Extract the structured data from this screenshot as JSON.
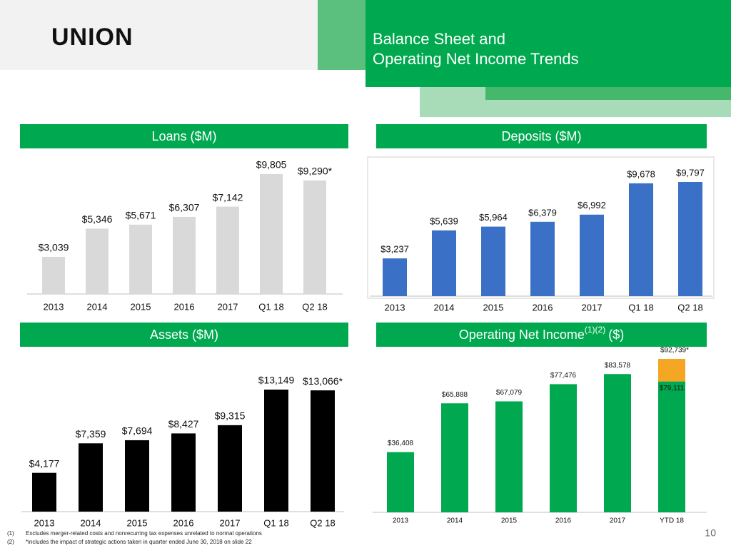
{
  "header": {
    "logo": "UNION",
    "title_lines": [
      "Balance Sheet and",
      "Operating Net Income Trends"
    ]
  },
  "chart_data": [
    {
      "type": "bar",
      "title": "Loans ($M)",
      "categories": [
        "2013",
        "2014",
        "2015",
        "2016",
        "2017",
        "Q1 18",
        "Q2 18"
      ],
      "series": [
        {
          "color": "#d9d9d9",
          "values": [
            3039,
            5346,
            5671,
            6307,
            7142,
            9805,
            9290
          ],
          "value_labels": [
            "$3,039",
            "$5,346",
            "$5,671",
            "$6,307",
            "$7,142",
            "$9,805",
            "$9,290*"
          ]
        }
      ]
    },
    {
      "type": "bar",
      "title": "Deposits ($M)",
      "categories": [
        "2013",
        "2014",
        "2015",
        "2016",
        "2017",
        "Q1 18",
        "Q2 18"
      ],
      "series": [
        {
          "color": "#3a70c6",
          "values": [
            3237,
            5639,
            5964,
            6379,
            6992,
            9678,
            9797
          ],
          "value_labels": [
            "$3,237",
            "$5,639",
            "$5,964",
            "$6,379",
            "$6,992",
            "$9,678",
            "$9,797"
          ]
        }
      ]
    },
    {
      "type": "bar",
      "title": "Assets ($M)",
      "categories": [
        "2013",
        "2014",
        "2015",
        "2016",
        "2017",
        "Q1 18",
        "Q2 18"
      ],
      "series": [
        {
          "color": "#000000",
          "values": [
            4177,
            7359,
            7694,
            8427,
            9315,
            13149,
            13066
          ],
          "value_labels": [
            "$4,177",
            "$7,359",
            "$7,694",
            "$8,427",
            "$9,315",
            "$13,149",
            "$13,066*"
          ]
        }
      ]
    },
    {
      "type": "stacked-bar",
      "title": "Operating Net Income",
      "title_superscript": "(1)(2)",
      "title_suffix": "($)",
      "categories": [
        "2013",
        "2014",
        "2015",
        "2016",
        "2017",
        "YTD 18"
      ],
      "series": [
        {
          "color": "#00a94f",
          "values": [
            36408,
            65888,
            67079,
            77476,
            83578,
            79111
          ],
          "value_labels": [
            "$36,408",
            "$65,888",
            "$67,079",
            "$77,476",
            "$83,578",
            "$79,111"
          ]
        },
        {
          "color": "#f5a623",
          "values": [
            null,
            null,
            null,
            null,
            null,
            13628
          ]
        }
      ],
      "annotations": [
        "$92,739*"
      ]
    }
  ],
  "footnotes": [
    {
      "marker": "(1)",
      "text": "Excludes merger-related costs and nonrecurring tax expenses unrelated to normal operations"
    },
    {
      "marker": "(2)",
      "text": "*includes the impact of strategic actions taken in quarter ended June 30, 2018 on slide 22"
    }
  ],
  "page_number": 10
}
